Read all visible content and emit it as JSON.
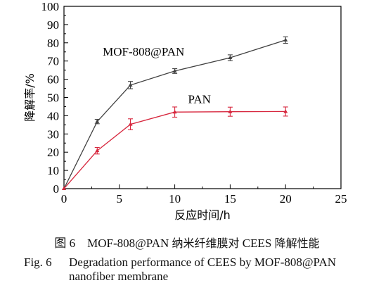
{
  "chart_data": {
    "type": "line",
    "xlabel": "反应时间/h",
    "ylabel": "降解率/%",
    "xlim": [
      0,
      25
    ],
    "ylim": [
      0,
      100
    ],
    "xticks": [
      "0",
      "5",
      "10",
      "15",
      "20",
      "25"
    ],
    "yticks": [
      "0",
      "10",
      "20",
      "30",
      "40",
      "50",
      "60",
      "70",
      "80",
      "90",
      "100"
    ],
    "grid": false,
    "series": [
      {
        "name": "MOF-808@PAN",
        "color": "#404040",
        "x": [
          0,
          3,
          6,
          10,
          15,
          20
        ],
        "y": [
          0,
          36.8,
          56.8,
          64.5,
          71.8,
          81.5
        ],
        "err": [
          0,
          1.2,
          2.0,
          1.3,
          1.6,
          1.8
        ]
      },
      {
        "name": "PAN",
        "color": "#d7263d",
        "x": [
          0,
          3,
          6,
          10,
          15,
          20
        ],
        "y": [
          0,
          20.8,
          35.3,
          42.0,
          42.2,
          42.3
        ],
        "err": [
          0,
          1.8,
          3.0,
          2.8,
          2.5,
          2.5
        ]
      }
    ]
  },
  "caption": {
    "cn_label": "图 6",
    "cn_text_a": "MOF-808@PAN",
    "cn_text_b": "纳米纤维膜对",
    "cn_text_c": "CEES",
    "cn_text_d": "降解性能",
    "en_label": "Fig. 6",
    "en_line1": "Degradation performance of CEES by MOF-808@PAN",
    "en_line2": "nanofiber membrane"
  }
}
